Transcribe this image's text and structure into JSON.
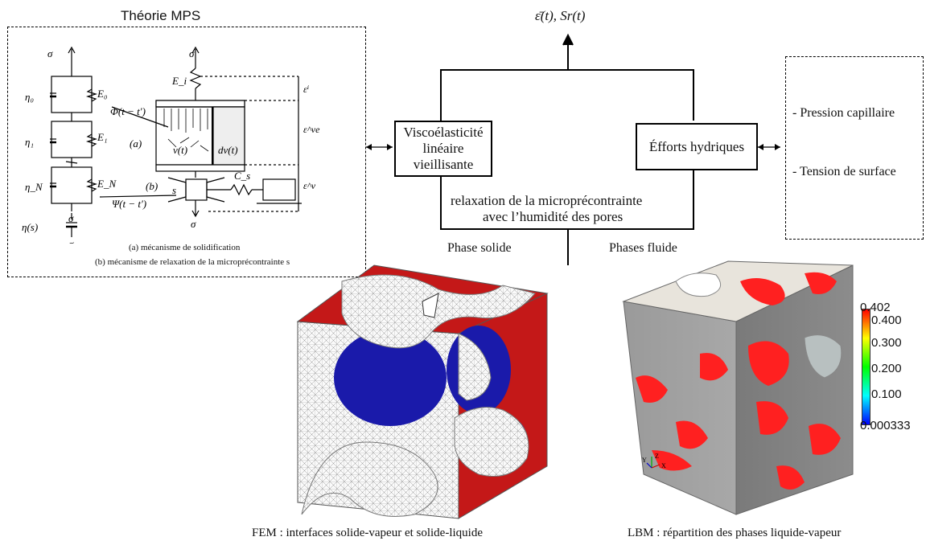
{
  "mps_panel": {
    "title": "Théorie MPS",
    "caption_a": "(a) mécanisme de solidification",
    "caption_b": "(b) mécanisme de relaxation de la microprécontrainte s",
    "symbols": {
      "sigma": "σ",
      "eta0": "η0",
      "E0": "E0",
      "eta1": "η1",
      "E1": "E1",
      "etaN": "ηN",
      "EN": "EN",
      "eta_s": "η(s)",
      "Ei": "Ei",
      "phi": "Φ(t − t′)",
      "psi": "Ψ(t − t′)",
      "vt": "v(t)",
      "dvt": "dv(t)",
      "a": "(a)",
      "b": "(b)",
      "s": "s",
      "Cs": "Cs",
      "eps_i": "εi",
      "eps_ve": "εve",
      "eps_v": "εv"
    }
  },
  "top_output": "ε̄(t), Sr(t)",
  "box_visco": "Viscoélasticité linéaire vieillisante",
  "box_efforts": "Éfforts hydriques",
  "relax_line1": "relaxation de la microprécontrainte",
  "relax_line2": "avec l’humidité des pores",
  "phase_solide": "Phase solide",
  "phases_fluide": "Phases fluide",
  "right_panel": {
    "item1": "- Pression capillaire",
    "item2": "- Tension de surface"
  },
  "fem_caption": "FEM : interfaces solide-vapeur et solide-liquide",
  "lbm_caption": "LBM : répartition des phases liquide-vapeur",
  "colorbar": {
    "max_label": "0.402",
    "ticks": [
      "0.400",
      "0.300",
      "0.200",
      "0.100"
    ],
    "min_label": "0.000333",
    "colors": [
      "#ff0000",
      "#ffff00",
      "#00ff00",
      "#00ffff",
      "#0000ff"
    ]
  },
  "axes_triad": {
    "z": "Z",
    "y": "Y",
    "x": "X"
  }
}
